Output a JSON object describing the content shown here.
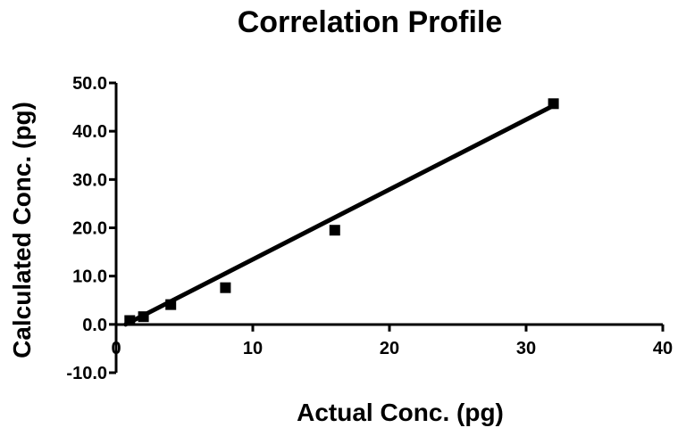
{
  "chart_data": {
    "type": "scatter",
    "title": "Correlation Profile",
    "xlabel": "Actual Conc. (pg)",
    "ylabel": "Calculated Conc. (pg)",
    "xlim": [
      0,
      40
    ],
    "ylim": [
      -10,
      50
    ],
    "x_ticks": [
      {
        "value": 0,
        "label": "0"
      },
      {
        "value": 10,
        "label": "10"
      },
      {
        "value": 20,
        "label": "20"
      },
      {
        "value": 30,
        "label": "30"
      },
      {
        "value": 40,
        "label": "40"
      }
    ],
    "y_ticks": [
      {
        "value": 50,
        "label": "50.0"
      },
      {
        "value": 40,
        "label": "40.0"
      },
      {
        "value": 30,
        "label": "30.0"
      },
      {
        "value": 20,
        "label": "20.0"
      },
      {
        "value": 10,
        "label": "10.0"
      },
      {
        "value": 0,
        "label": "0.0"
      },
      {
        "value": -10,
        "label": "-10.0"
      }
    ],
    "points": [
      {
        "x": 1,
        "y": 0.8
      },
      {
        "x": 2,
        "y": 1.6
      },
      {
        "x": 4,
        "y": 4.1
      },
      {
        "x": 8,
        "y": 7.6
      },
      {
        "x": 16,
        "y": 19.5
      },
      {
        "x": 32,
        "y": 45.7
      }
    ],
    "fit_line": {
      "x1": 0.7,
      "y1": 0.0,
      "x2": 32,
      "y2": 45.3
    },
    "grid": false,
    "marker": "square",
    "color": "#000000"
  }
}
